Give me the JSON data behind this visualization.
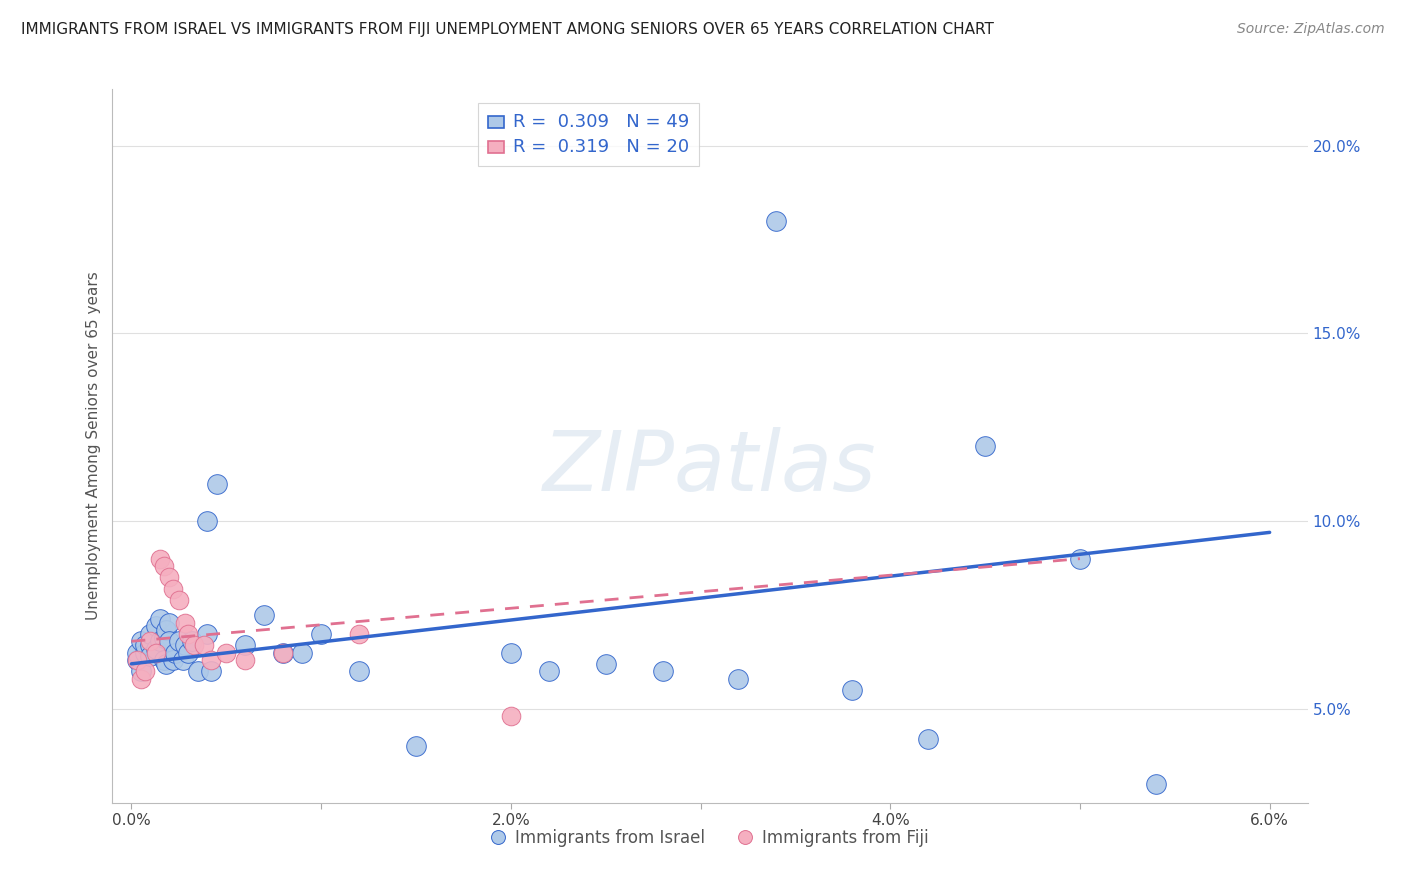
{
  "title": "IMMIGRANTS FROM ISRAEL VS IMMIGRANTS FROM FIJI UNEMPLOYMENT AMONG SENIORS OVER 65 YEARS CORRELATION CHART",
  "source": "Source: ZipAtlas.com",
  "ylabel": "Unemployment Among Seniors over 65 years",
  "xlim": [
    -0.001,
    0.062
  ],
  "ylim": [
    0.025,
    0.215
  ],
  "xticks": [
    0.0,
    0.01,
    0.02,
    0.03,
    0.04,
    0.05,
    0.06
  ],
  "xticklabels": [
    "0.0%",
    "",
    "2.0%",
    "",
    "4.0%",
    "",
    "6.0%"
  ],
  "ytick_vals": [
    0.05,
    0.1,
    0.15,
    0.2
  ],
  "yticklabels": [
    "5.0%",
    "10.0%",
    "15.0%",
    "20.0%"
  ],
  "legend1_label": "R =  0.309   N = 49",
  "legend2_label": "R =  0.319   N = 20",
  "israel_color": "#aec9e8",
  "fiji_color": "#f5afc0",
  "israel_line_color": "#3366cc",
  "fiji_line_color": "#e07090",
  "watermark": "ZIPatlas",
  "israel_x": [
    0.0003,
    0.0003,
    0.0005,
    0.0005,
    0.0007,
    0.0007,
    0.001,
    0.001,
    0.001,
    0.0013,
    0.0013,
    0.0015,
    0.0015,
    0.0017,
    0.0017,
    0.0018,
    0.0018,
    0.002,
    0.002,
    0.0022,
    0.0023,
    0.0025,
    0.0027,
    0.0028,
    0.003,
    0.0032,
    0.0035,
    0.004,
    0.004,
    0.0042,
    0.0045,
    0.006,
    0.007,
    0.008,
    0.009,
    0.01,
    0.012,
    0.015,
    0.02,
    0.022,
    0.025,
    0.028,
    0.032,
    0.034,
    0.038,
    0.042,
    0.045,
    0.05,
    0.054
  ],
  "israel_y": [
    0.063,
    0.065,
    0.068,
    0.06,
    0.065,
    0.067,
    0.067,
    0.064,
    0.07,
    0.066,
    0.072,
    0.068,
    0.074,
    0.063,
    0.069,
    0.062,
    0.071,
    0.073,
    0.068,
    0.063,
    0.065,
    0.068,
    0.063,
    0.067,
    0.065,
    0.068,
    0.06,
    0.1,
    0.07,
    0.06,
    0.11,
    0.067,
    0.075,
    0.065,
    0.065,
    0.07,
    0.06,
    0.04,
    0.065,
    0.06,
    0.062,
    0.06,
    0.058,
    0.18,
    0.055,
    0.042,
    0.12,
    0.09,
    0.03
  ],
  "fiji_x": [
    0.0003,
    0.0005,
    0.0007,
    0.001,
    0.0013,
    0.0015,
    0.0017,
    0.002,
    0.0022,
    0.0025,
    0.0028,
    0.003,
    0.0033,
    0.0038,
    0.0042,
    0.005,
    0.006,
    0.008,
    0.012,
    0.02
  ],
  "fiji_y": [
    0.063,
    0.058,
    0.06,
    0.068,
    0.065,
    0.09,
    0.088,
    0.085,
    0.082,
    0.079,
    0.073,
    0.07,
    0.067,
    0.067,
    0.063,
    0.065,
    0.063,
    0.065,
    0.07,
    0.048
  ],
  "israel_line_x0": 0.0,
  "israel_line_y0": 0.062,
  "israel_line_x1": 0.06,
  "israel_line_y1": 0.097,
  "fiji_line_x0": 0.0,
  "fiji_line_y0": 0.068,
  "fiji_line_x1": 0.05,
  "fiji_line_y1": 0.09,
  "dot_size_israel": 200,
  "dot_size_fiji": 180,
  "background_color": "#ffffff",
  "grid_color": "#e0e0e0"
}
